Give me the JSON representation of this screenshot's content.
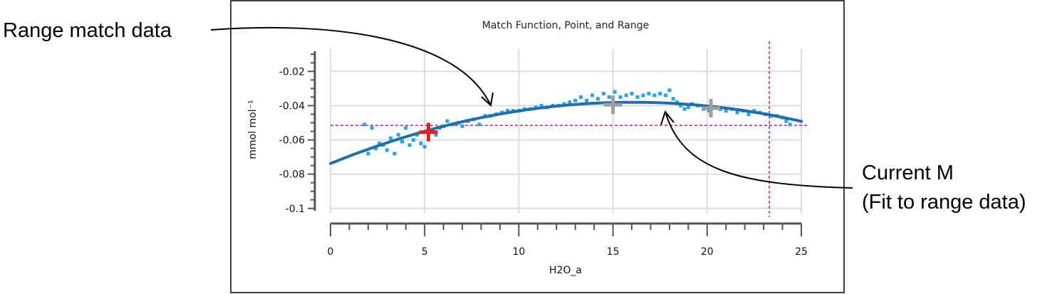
{
  "callouts": {
    "range_data": "Range match data",
    "current_m_line1": "Current  M",
    "current_m_line2": "(Fit to range data)"
  },
  "chart_data": {
    "type": "scatter",
    "title": "Match Function, Point, and Range",
    "xlabel": "H2O_a",
    "ylabel": "mmol mol⁻¹",
    "xlim": [
      0,
      25
    ],
    "ylim": [
      -0.103,
      -0.007
    ],
    "x_ticks": [
      0,
      5,
      10,
      15,
      20,
      25
    ],
    "x_tick_labels": [
      "0",
      "5",
      "10",
      "15",
      "20",
      "25"
    ],
    "y_ticks": [
      -0.02,
      -0.04,
      -0.06,
      -0.08,
      -0.1
    ],
    "y_tick_labels": [
      "-0.02",
      "-0.04",
      "-0.06",
      "-0.08",
      "-0.1"
    ],
    "grid": true,
    "fit_curve": {
      "coefficients": [
        -0.0738,
        0.00446,
        -0.000139
      ],
      "color": "#1f6fad"
    },
    "scatter_color": "#29a3ea",
    "reference_lines": {
      "horizontal_y": -0.0515,
      "vertical_x": 23.3,
      "color": "#d4147a"
    },
    "markers": [
      {
        "type": "current",
        "x": 5.2,
        "y": -0.0555,
        "color": "#ee1c1c"
      },
      {
        "type": "match",
        "x": 15.0,
        "y": -0.0395,
        "color": "#9e9e9e"
      },
      {
        "type": "match",
        "x": 20.2,
        "y": -0.0415,
        "color": "#9e9e9e"
      }
    ],
    "series": [
      {
        "values": [
          [
            1.8,
            -0.051
          ],
          [
            2.0,
            -0.068
          ],
          [
            2.2,
            -0.053
          ],
          [
            2.4,
            -0.065
          ],
          [
            2.6,
            -0.062
          ],
          [
            2.8,
            -0.063
          ],
          [
            3.0,
            -0.066
          ],
          [
            3.2,
            -0.059
          ],
          [
            3.4,
            -0.068
          ],
          [
            3.6,
            -0.057
          ],
          [
            3.8,
            -0.061
          ],
          [
            4.0,
            -0.053
          ],
          [
            4.2,
            -0.063
          ],
          [
            4.4,
            -0.06
          ],
          [
            4.6,
            -0.057
          ],
          [
            4.8,
            -0.062
          ],
          [
            5.0,
            -0.064
          ],
          [
            5.2,
            -0.058
          ],
          [
            5.4,
            -0.055
          ],
          [
            5.6,
            -0.057
          ],
          [
            5.8,
            -0.053
          ],
          [
            6.0,
            -0.052
          ],
          [
            6.2,
            -0.049
          ],
          [
            6.5,
            -0.051
          ],
          [
            6.8,
            -0.05
          ],
          [
            7.0,
            -0.052
          ],
          [
            7.3,
            -0.049
          ],
          [
            7.6,
            -0.048
          ],
          [
            7.9,
            -0.051
          ],
          [
            8.2,
            -0.046
          ],
          [
            8.5,
            -0.046
          ],
          [
            8.8,
            -0.045
          ],
          [
            9.1,
            -0.044
          ],
          [
            9.4,
            -0.043
          ],
          [
            9.7,
            -0.043
          ],
          [
            10.0,
            -0.043
          ],
          [
            10.3,
            -0.042
          ],
          [
            10.6,
            -0.042
          ],
          [
            10.9,
            -0.041
          ],
          [
            11.2,
            -0.04
          ],
          [
            11.5,
            -0.041
          ],
          [
            11.8,
            -0.04
          ],
          [
            12.1,
            -0.04
          ],
          [
            12.4,
            -0.039
          ],
          [
            12.7,
            -0.038
          ],
          [
            13.0,
            -0.037
          ],
          [
            13.3,
            -0.035
          ],
          [
            13.6,
            -0.037
          ],
          [
            13.9,
            -0.034
          ],
          [
            14.2,
            -0.036
          ],
          [
            14.5,
            -0.033
          ],
          [
            14.8,
            -0.035
          ],
          [
            15.1,
            -0.032
          ],
          [
            15.4,
            -0.035
          ],
          [
            15.7,
            -0.034
          ],
          [
            16.0,
            -0.033
          ],
          [
            16.3,
            -0.035
          ],
          [
            16.6,
            -0.034
          ],
          [
            16.9,
            -0.033
          ],
          [
            17.2,
            -0.034
          ],
          [
            17.5,
            -0.033
          ],
          [
            17.8,
            -0.034
          ],
          [
            18.0,
            -0.031
          ],
          [
            18.2,
            -0.036
          ],
          [
            18.4,
            -0.038
          ],
          [
            18.6,
            -0.04
          ],
          [
            18.8,
            -0.042
          ],
          [
            19.0,
            -0.041
          ],
          [
            19.2,
            -0.039
          ],
          [
            19.5,
            -0.04
          ],
          [
            19.8,
            -0.042
          ],
          [
            20.1,
            -0.043
          ],
          [
            20.4,
            -0.041
          ],
          [
            20.7,
            -0.042
          ],
          [
            21.0,
            -0.043
          ],
          [
            21.3,
            -0.042
          ],
          [
            21.6,
            -0.044
          ],
          [
            21.9,
            -0.043
          ],
          [
            22.2,
            -0.045
          ],
          [
            22.5,
            -0.043
          ],
          [
            22.8,
            -0.044
          ],
          [
            23.1,
            -0.045
          ],
          [
            23.4,
            -0.046
          ],
          [
            23.7,
            -0.046
          ],
          [
            24.0,
            -0.047
          ],
          [
            24.2,
            -0.049
          ],
          [
            24.4,
            -0.051
          ]
        ]
      }
    ]
  }
}
